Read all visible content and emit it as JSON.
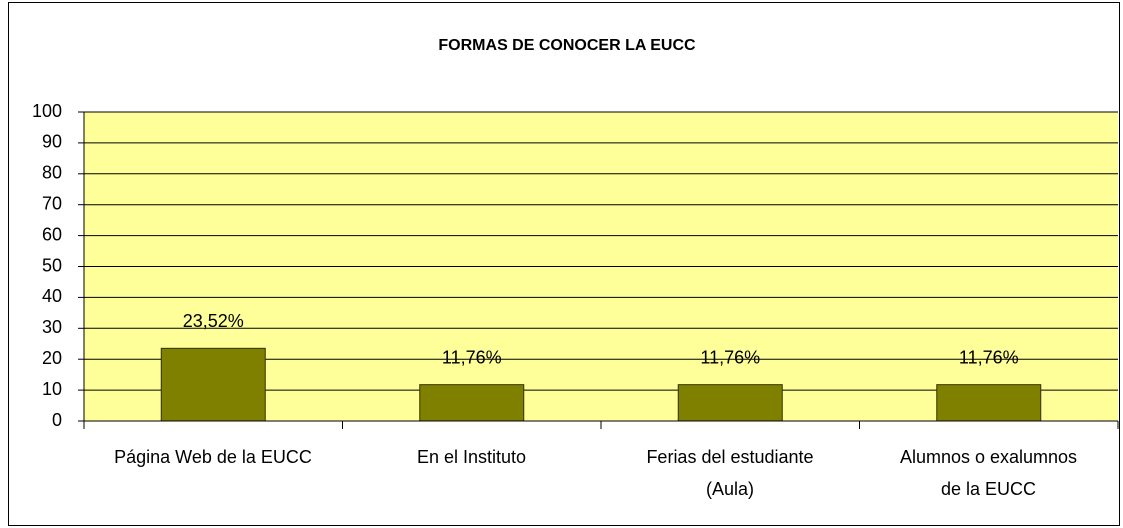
{
  "chart_data": {
    "type": "bar",
    "title": "FORMAS DE CONOCER LA EUCC",
    "categories": [
      "Página Web de la EUCC",
      "En el Instituto",
      "Ferias del estudiante\n(Aula)",
      "Alumnos o exalumnos\nde la EUCC"
    ],
    "values": [
      23.52,
      11.76,
      11.76,
      11.76
    ],
    "value_labels": [
      "23,52%",
      "11,76%",
      "11,76%",
      "11,76%"
    ],
    "color": "#808000",
    "plot_background": "#ffff99",
    "ylim": [
      0,
      100
    ],
    "yticks": [
      0,
      10,
      20,
      30,
      40,
      50,
      60,
      70,
      80,
      90,
      100
    ],
    "grid": true
  }
}
